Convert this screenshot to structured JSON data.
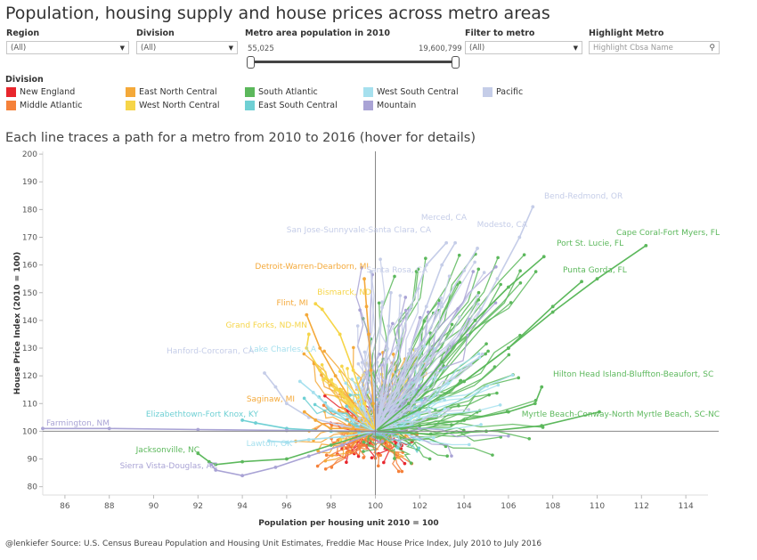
{
  "title": "Population, housing supply and house prices across metro areas",
  "filters": {
    "region": {
      "label": "Region",
      "value": "(All)"
    },
    "division": {
      "label": "Division",
      "value": "(All)"
    },
    "population": {
      "label": "Metro area population in 2010",
      "min": "55,025",
      "max": "19,600,799"
    },
    "filter_metro": {
      "label": "Filter to metro",
      "value": "(All)"
    },
    "highlight": {
      "label": "Highlight Metro",
      "placeholder": "Highlight Cbsa Name"
    }
  },
  "legend": {
    "title": "Division",
    "items": [
      {
        "name": "New England",
        "color": "#e8262d"
      },
      {
        "name": "Middle Atlantic",
        "color": "#f5813a"
      },
      {
        "name": "East North Central",
        "color": "#f4a93a"
      },
      {
        "name": "West North Central",
        "color": "#f6d548"
      },
      {
        "name": "South Atlantic",
        "color": "#5cb85c"
      },
      {
        "name": "East South Central",
        "color": "#6fd0d4"
      },
      {
        "name": "West South Central",
        "color": "#a6e0ee"
      },
      {
        "name": "Mountain",
        "color": "#a9a3d5"
      },
      {
        "name": "Pacific",
        "color": "#c5cde8"
      }
    ]
  },
  "subtitle": "Each line traces a path for a metro from 2010 to 2016 (hover for details)",
  "footer": "@lenkiefer Source: U.S. Census Bureau Population and Housing Unit Estimates, Freddie Mac House Price Index, July 2010 to July 2016",
  "chart_data": {
    "type": "line",
    "xlabel": "Population per housing unit 2010 = 100",
    "ylabel": "House Price Index (2010 = 100)",
    "xlim": [
      85,
      115
    ],
    "ylim": [
      77,
      201
    ],
    "xticks": [
      86,
      88,
      90,
      92,
      94,
      96,
      98,
      100,
      102,
      104,
      106,
      108,
      110,
      112,
      114
    ],
    "yticks": [
      80,
      90,
      100,
      110,
      120,
      130,
      140,
      150,
      160,
      170,
      180,
      190,
      200
    ],
    "reference_lines": {
      "x": 100,
      "y": 100
    },
    "annotated_series": [
      {
        "name": "Bend-Redmond, OR",
        "division": "Pacific",
        "path": [
          [
            100,
            100
          ],
          [
            101.5,
            108
          ],
          [
            103,
            125
          ],
          [
            104.5,
            140
          ],
          [
            105.5,
            155
          ],
          [
            106.5,
            170
          ],
          [
            107.1,
            181
          ]
        ]
      },
      {
        "name": "Merced, CA",
        "division": "Pacific",
        "path": [
          [
            100,
            100
          ],
          [
            100.8,
            112
          ],
          [
            101.5,
            128
          ],
          [
            102.3,
            145
          ],
          [
            103,
            160
          ],
          [
            103.6,
            168
          ]
        ]
      },
      {
        "name": "Modesto, CA",
        "division": "Pacific",
        "path": [
          [
            100,
            100
          ],
          [
            101,
            115
          ],
          [
            102,
            130
          ],
          [
            103,
            145
          ],
          [
            104,
            158
          ],
          [
            104.6,
            166
          ]
        ]
      },
      {
        "name": "San Jose-Sunnyvale-Santa Clara, CA",
        "division": "Pacific",
        "path": [
          [
            100,
            100
          ],
          [
            100.5,
            115
          ],
          [
            101,
            130
          ],
          [
            101.6,
            145
          ],
          [
            102.3,
            160
          ],
          [
            103.2,
            168
          ]
        ]
      },
      {
        "name": "Santa Rosa, CA",
        "division": "Pacific",
        "path": [
          [
            100,
            100
          ],
          [
            100.3,
            112
          ],
          [
            100.5,
            125
          ],
          [
            100.6,
            138
          ],
          [
            100.7,
            150
          ]
        ]
      },
      {
        "name": "Cape Coral-Fort Myers, FL",
        "division": "South Atlantic",
        "path": [
          [
            100,
            100
          ],
          [
            102,
            108
          ],
          [
            104,
            118
          ],
          [
            106,
            130
          ],
          [
            108,
            143
          ],
          [
            110,
            155
          ],
          [
            112.2,
            167
          ]
        ]
      },
      {
        "name": "Port St. Lucie, FL",
        "division": "South Atlantic",
        "path": [
          [
            100,
            100
          ],
          [
            101.5,
            110
          ],
          [
            103,
            125
          ],
          [
            104.5,
            140
          ],
          [
            106,
            152
          ],
          [
            107.6,
            163
          ]
        ]
      },
      {
        "name": "Punta Gorda, FL",
        "division": "South Atlantic",
        "path": [
          [
            100,
            100
          ],
          [
            102,
            108
          ],
          [
            104,
            118
          ],
          [
            106,
            130
          ],
          [
            108,
            145
          ],
          [
            109.3,
            154
          ]
        ]
      },
      {
        "name": "Hilton Head Island-Bluffton-Beaufort, SC",
        "division": "South Atlantic",
        "path": [
          [
            100,
            100
          ],
          [
            102,
            102
          ],
          [
            104,
            104
          ],
          [
            106,
            107
          ],
          [
            107.2,
            110
          ],
          [
            107.5,
            116
          ]
        ]
      },
      {
        "name": "Myrtle Beach-Conway-North Myrtle Beach, SC-NC",
        "division": "South Atlantic",
        "path": [
          [
            100,
            100
          ],
          [
            102.5,
            99
          ],
          [
            105,
            100
          ],
          [
            107.5,
            102
          ],
          [
            110.1,
            107
          ]
        ]
      },
      {
        "name": "Jacksonville, NC",
        "division": "South Atlantic",
        "path": [
          [
            100,
            100
          ],
          [
            98,
            95
          ],
          [
            96,
            90
          ],
          [
            94,
            89
          ],
          [
            92.8,
            88
          ],
          [
            92.5,
            89
          ],
          [
            92,
            92
          ]
        ]
      },
      {
        "name": "Detroit-Warren-Dearborn, MI",
        "division": "East North Central",
        "path": [
          [
            100,
            100
          ],
          [
            99.9,
            110
          ],
          [
            99.8,
            122
          ],
          [
            99.7,
            135
          ],
          [
            99.6,
            145
          ],
          [
            99.5,
            155
          ]
        ]
      },
      {
        "name": "Bismarck, ND",
        "division": "West North Central",
        "path": [
          [
            100,
            100
          ],
          [
            99.5,
            110
          ],
          [
            99,
            122
          ],
          [
            98.4,
            135
          ],
          [
            97.6,
            144
          ],
          [
            97.3,
            146
          ]
        ]
      },
      {
        "name": "Flint, MI",
        "division": "East North Central",
        "path": [
          [
            100,
            100
          ],
          [
            99,
            110
          ],
          [
            98.2,
            120
          ],
          [
            97.5,
            130
          ],
          [
            96.9,
            142
          ]
        ]
      },
      {
        "name": "Grand Forks, ND-MN",
        "division": "West North Central",
        "path": [
          [
            100,
            100
          ],
          [
            99.2,
            108
          ],
          [
            98.3,
            115
          ],
          [
            97.5,
            122
          ],
          [
            96.9,
            130
          ],
          [
            97,
            135
          ]
        ]
      },
      {
        "name": "Lake Charles, LA",
        "division": "West South Central",
        "path": [
          [
            100,
            100
          ],
          [
            99,
            104
          ],
          [
            98,
            108
          ],
          [
            97.2,
            114
          ],
          [
            96.6,
            118
          ]
        ]
      },
      {
        "name": "Hanford-Corcoran, CA",
        "division": "Pacific",
        "path": [
          [
            100,
            100
          ],
          [
            98.5,
            102
          ],
          [
            97,
            105
          ],
          [
            96,
            110
          ],
          [
            95.5,
            116
          ],
          [
            95,
            121
          ]
        ]
      },
      {
        "name": "Saginaw, MI",
        "division": "East North Central",
        "path": [
          [
            100,
            100
          ],
          [
            99,
            101
          ],
          [
            98,
            101
          ],
          [
            97.3,
            104
          ],
          [
            96.8,
            107
          ]
        ]
      },
      {
        "name": "Elizabethtown-Fort Knox, KY",
        "division": "East South Central",
        "path": [
          [
            100,
            100
          ],
          [
            98,
            100
          ],
          [
            96,
            101
          ],
          [
            94.6,
            103
          ],
          [
            94,
            104
          ]
        ]
      },
      {
        "name": "Farmington, NM",
        "division": "Mountain",
        "path": [
          [
            100,
            100
          ],
          [
            96,
            100.3
          ],
          [
            92,
            100.6
          ],
          [
            88,
            101
          ],
          [
            85,
            101
          ]
        ]
      },
      {
        "name": "Lawton, OK",
        "division": "West South Central",
        "path": [
          [
            100,
            100
          ],
          [
            98.5,
            98
          ],
          [
            97,
            97
          ],
          [
            96,
            96
          ],
          [
            95.2,
            96.5
          ]
        ]
      },
      {
        "name": "Sierra Vista-Douglas, AZ",
        "division": "Mountain",
        "path": [
          [
            100,
            100
          ],
          [
            98.5,
            95
          ],
          [
            97,
            91
          ],
          [
            95.5,
            87
          ],
          [
            94,
            84
          ],
          [
            92.8,
            86
          ],
          [
            92.6,
            88
          ]
        ]
      }
    ],
    "annotations": [
      {
        "text": "Bend-Redmond, OR",
        "x": 107.1,
        "y": 181,
        "division": "Pacific"
      },
      {
        "text": "Merced, CA",
        "x": 103.6,
        "y": 168,
        "division": "Pacific"
      },
      {
        "text": "Modesto, CA",
        "x": 104.6,
        "y": 166,
        "division": "Pacific"
      },
      {
        "text": "San Jose-Sunnyvale-Santa Clara, CA",
        "x": 103.2,
        "y": 168,
        "division": "Pacific"
      },
      {
        "text": "Cape Coral-Fort Myers, FL",
        "x": 112.2,
        "y": 167,
        "division": "South Atlantic"
      },
      {
        "text": "Port St. Lucie, FL",
        "x": 107.6,
        "y": 163,
        "division": "South Atlantic"
      },
      {
        "text": "Detroit-Warren-Dearborn, MI",
        "x": 99.5,
        "y": 155,
        "division": "East North Central"
      },
      {
        "text": "Santa Rosa, CA",
        "x": 100.7,
        "y": 150,
        "division": "Pacific"
      },
      {
        "text": "Punta Gorda, FL",
        "x": 109.3,
        "y": 154,
        "division": "South Atlantic"
      },
      {
        "text": "Bismarck, ND",
        "x": 97.3,
        "y": 146,
        "division": "West North Central"
      },
      {
        "text": "Flint, MI",
        "x": 96.9,
        "y": 142,
        "division": "East North Central"
      },
      {
        "text": "Grand Forks, ND-MN",
        "x": 96.9,
        "y": 135,
        "division": "West North Central"
      },
      {
        "text": "Lake Charles, LA",
        "x": 96.6,
        "y": 130,
        "division": "West South Central"
      },
      {
        "text": "Hanford-Corcoran, CA",
        "x": 95,
        "y": 121,
        "division": "Pacific"
      },
      {
        "text": "Hilton Head Island-Bluffton-Beaufort, SC",
        "x": 107.5,
        "y": 116,
        "division": "South Atlantic"
      },
      {
        "text": "Saginaw, MI",
        "x": 96.8,
        "y": 107,
        "division": "East North Central"
      },
      {
        "text": "Elizabethtown-Fort Knox, KY",
        "x": 94,
        "y": 104,
        "division": "East South Central"
      },
      {
        "text": "Myrtle Beach-Conway-North Myrtle Beach, SC-NC",
        "x": 110.1,
        "y": 107,
        "division": "South Atlantic"
      },
      {
        "text": "Farmington, NM",
        "x": 85,
        "y": 101,
        "division": "Mountain"
      },
      {
        "text": "Lawton, OK",
        "x": 95.2,
        "y": 96.5,
        "division": "West South Central"
      },
      {
        "text": "Jacksonville, NC",
        "x": 92,
        "y": 92,
        "division": "South Atlantic"
      },
      {
        "text": "Sierra Vista-Douglas, AZ",
        "x": 92.6,
        "y": 88,
        "division": "Mountain"
      }
    ]
  }
}
